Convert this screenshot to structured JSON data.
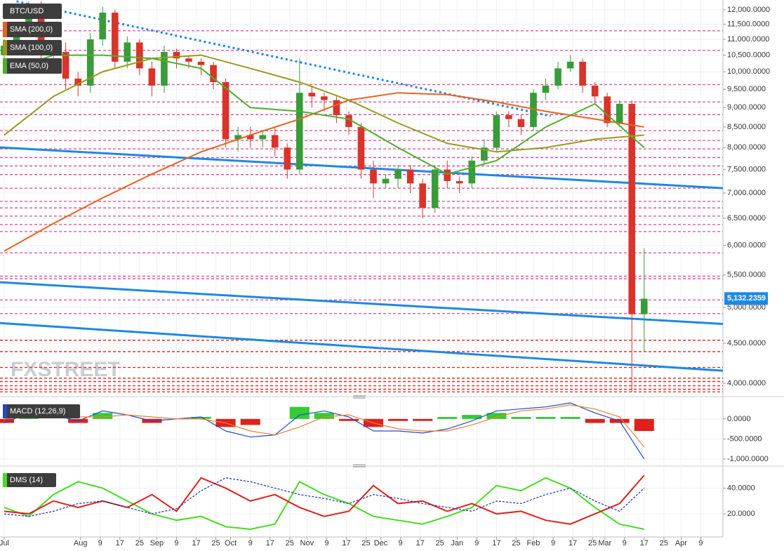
{
  "chart_data": [
    {
      "type": "candlestick",
      "symbol": "BTC/USD",
      "log_scale": true,
      "xlim": [
        -1.7,
        292
      ],
      "ylim": [
        3870,
        12350
      ],
      "yticks": [
        {
          "value": 12000,
          "label": "12,000.0000"
        },
        {
          "value": 11500,
          "label": "11,500.0000"
        },
        {
          "value": 11000,
          "label": "11,000.0000"
        },
        {
          "value": 10500,
          "label": "10,500.0000"
        },
        {
          "value": 10000,
          "label": "10,000.0000"
        },
        {
          "value": 9500,
          "label": "9,500.0000"
        },
        {
          "value": 9000,
          "label": "9,000.0000"
        },
        {
          "value": 8500,
          "label": "8,500.0000"
        },
        {
          "value": 8000,
          "label": "8,000.0000"
        },
        {
          "value": 7500,
          "label": "7,500.0000"
        },
        {
          "value": 7000,
          "label": "7,000.0000"
        },
        {
          "value": 6500,
          "label": "6,500.0000"
        },
        {
          "value": 6000,
          "label": "6,000.0000"
        },
        {
          "value": 5500,
          "label": "5,500.0000"
        },
        {
          "value": 5000,
          "label": "5,000.0000"
        },
        {
          "value": 4500,
          "label": "4,500.0000"
        },
        {
          "value": 4000,
          "label": "4,000.0000"
        }
      ],
      "last_price": {
        "value": 5132.2359,
        "label": "5,132.2359"
      },
      "last_price_color": "#1e88e5",
      "watermark": "FXSTREET",
      "candles": {
        "up_color": "#3a9b3a",
        "down_color": "#d9342b",
        "x": [
          0,
          5,
          10,
          15,
          20,
          25,
          30,
          35,
          40,
          45,
          50,
          55,
          60,
          65,
          70,
          75,
          80,
          85,
          90,
          95,
          100,
          105,
          110,
          115,
          120,
          125,
          130,
          135,
          140,
          145,
          150,
          155,
          160,
          165,
          170,
          175,
          180,
          185,
          190,
          195,
          200,
          205,
          210,
          215,
          220,
          225,
          230,
          235,
          240,
          245,
          250,
          255,
          260
        ],
        "open": [
          10500,
          10800,
          11300,
          12100,
          10500,
          10600,
          9800,
          9600,
          11000,
          11900,
          10300,
          10900,
          10100,
          9600,
          10600,
          10400,
          10300,
          10200,
          9700,
          8200,
          8300,
          8200,
          8300,
          8000,
          7500,
          9400,
          9300,
          9200,
          8800,
          8500,
          7500,
          7200,
          7300,
          7500,
          7200,
          6700,
          7500,
          7250,
          7200,
          7700,
          8000,
          8800,
          8700,
          8500,
          9400,
          9600,
          10100,
          10300,
          9600,
          9300,
          8600,
          9100,
          4900
        ],
        "high": [
          11000,
          11500,
          12300,
          12300,
          10900,
          10900,
          10000,
          11200,
          12100,
          12000,
          11100,
          11000,
          10300,
          10800,
          10700,
          10500,
          10400,
          10300,
          9800,
          8500,
          8500,
          8400,
          8500,
          8100,
          10400,
          9600,
          9400,
          9300,
          8900,
          8600,
          7700,
          7400,
          7600,
          7600,
          7300,
          7600,
          7700,
          7350,
          7800,
          8200,
          8900,
          8900,
          8800,
          9500,
          9800,
          10300,
          10500,
          10400,
          9700,
          9400,
          9200,
          9200,
          5950
        ],
        "low": [
          10200,
          10500,
          11100,
          10300,
          10100,
          9500,
          9300,
          9400,
          10800,
          10100,
          10100,
          9900,
          9300,
          9400,
          10100,
          10100,
          9900,
          9500,
          8000,
          7900,
          8000,
          8000,
          7800,
          7300,
          7400,
          9000,
          8900,
          8600,
          8300,
          7300,
          6900,
          7100,
          7100,
          7000,
          6500,
          6600,
          7100,
          7000,
          7100,
          7600,
          7900,
          8500,
          8300,
          8400,
          9200,
          9500,
          10000,
          9400,
          9100,
          8500,
          8500,
          3900,
          4400
        ],
        "close": [
          10800,
          11300,
          12100,
          10500,
          10600,
          9800,
          9600,
          11000,
          11900,
          10300,
          10900,
          10100,
          9600,
          10600,
          10400,
          10300,
          10200,
          9700,
          8200,
          8300,
          8200,
          8300,
          8000,
          7500,
          9400,
          9300,
          9200,
          8800,
          8500,
          7500,
          7200,
          7300,
          7500,
          7200,
          6700,
          7500,
          7250,
          7200,
          7700,
          8000,
          8800,
          8700,
          8500,
          9400,
          9600,
          10100,
          10300,
          9600,
          9300,
          8600,
          9100,
          4900,
          5130
        ]
      },
      "x": [
        0,
        20,
        40,
        60,
        80,
        100,
        120,
        140,
        160,
        180,
        200,
        220,
        240,
        260
      ],
      "series": [
        {
          "name": "SMA (200,0)",
          "color": "#e8621e",
          "values": [
            5900,
            6400,
            6900,
            7400,
            7900,
            8300,
            8700,
            9200,
            9400,
            9350,
            9150,
            8900,
            8700,
            8500
          ]
        },
        {
          "name": "SMA (100,0)",
          "color": "#9a9a1e",
          "values": [
            8300,
            9300,
            10000,
            10400,
            10500,
            10100,
            9700,
            9200,
            8600,
            8100,
            7900,
            8000,
            8200,
            8300
          ]
        },
        {
          "name": "EMA (50,0)",
          "color": "#4caf2a",
          "values": [
            10000,
            10500,
            10500,
            10400,
            10100,
            9000,
            8900,
            8700,
            8000,
            7400,
            7700,
            8500,
            9100,
            8000
          ]
        }
      ],
      "trendlines": [
        {
          "color": "#1e88e5",
          "dotted": true,
          "x": [
            5,
            222
          ],
          "values": [
            12300,
            8780
          ]
        },
        {
          "color": "#1e88e5",
          "dotted": false,
          "x": [
            -1.7,
            292
          ],
          "values": [
            8005,
            7100
          ]
        },
        {
          "color": "#1e88e5",
          "dotted": false,
          "x": [
            -1.7,
            292
          ],
          "values": [
            5383,
            4762
          ]
        },
        {
          "color": "#1e88e5",
          "dotted": false,
          "x": [
            -1.7,
            292
          ],
          "values": [
            4775,
            4150
          ]
        }
      ],
      "level_groups": [
        {
          "color": "#e8419a",
          "values": [
            11280,
            10650,
            9630,
            9150,
            8815,
            8410,
            8170,
            7970,
            7770,
            7580,
            7390,
            7100,
            6830,
            6700,
            6540,
            6380,
            6250,
            5870,
            5480,
            5440,
            5110,
            4910
          ]
        },
        {
          "color": "#e0201b",
          "values": [
            4540,
            4390,
            4190,
            4060,
            4020,
            3970,
            3930,
            3900
          ]
        }
      ]
    },
    {
      "type": "macd",
      "title": "MACD (12,26,9)",
      "xlim": [
        -1.7,
        292
      ],
      "ylim": [
        -1140,
        470
      ],
      "yticks": [
        {
          "value": 0,
          "label": "0.0000"
        },
        {
          "value": -500,
          "label": "-500.0000"
        },
        {
          "value": -1000,
          "label": "-1,000.0000"
        }
      ],
      "x": [
        0,
        10,
        20,
        30,
        40,
        50,
        60,
        70,
        80,
        90,
        100,
        110,
        120,
        130,
        140,
        150,
        160,
        170,
        180,
        190,
        200,
        210,
        220,
        230,
        240,
        250,
        260
      ],
      "histogram": {
        "positive_color": "#33cc33",
        "negative_color": "#e0201b",
        "values": [
          -100,
          100,
          0,
          -100,
          150,
          0,
          -100,
          0,
          50,
          -200,
          -150,
          0,
          300,
          150,
          -50,
          -200,
          -50,
          -50,
          50,
          100,
          150,
          50,
          50,
          50,
          -100,
          -100,
          -300
        ]
      },
      "series": [
        {
          "color": "#2448c8",
          "values": [
            -100,
            150,
            100,
            -50,
            200,
            100,
            -50,
            0,
            50,
            -300,
            -450,
            -400,
            100,
            200,
            50,
            -300,
            -300,
            -350,
            -250,
            -50,
            200,
            250,
            300,
            400,
            150,
            -50,
            -1000
          ]
        },
        {
          "color": "#f08030",
          "values": [
            0,
            50,
            100,
            50,
            50,
            100,
            50,
            0,
            0,
            -100,
            -300,
            -400,
            -200,
            50,
            100,
            -100,
            -250,
            -300,
            -300,
            -150,
            50,
            200,
            250,
            350,
            250,
            50,
            -700
          ]
        }
      ]
    },
    {
      "type": "line",
      "title": "DMS (14)",
      "xlim": [
        -1.7,
        292
      ],
      "ylim": [
        2,
        55
      ],
      "yticks": [
        {
          "value": 40,
          "label": "40.0000"
        },
        {
          "value": 20,
          "label": "20.0000"
        }
      ],
      "xticks": [
        {
          "value": 0,
          "label": "Jul"
        },
        {
          "value": 31,
          "label": "Aug"
        },
        {
          "value": 39,
          "label": "9"
        },
        {
          "value": 47,
          "label": "17"
        },
        {
          "value": 55,
          "label": "25"
        },
        {
          "value": 62,
          "label": "Sep"
        },
        {
          "value": 70,
          "label": "9"
        },
        {
          "value": 78,
          "label": "17"
        },
        {
          "value": 86,
          "label": "25"
        },
        {
          "value": 92,
          "label": "Oct"
        },
        {
          "value": 100,
          "label": "9"
        },
        {
          "value": 108,
          "label": "17"
        },
        {
          "value": 116,
          "label": "25"
        },
        {
          "value": 123,
          "label": "Nov"
        },
        {
          "value": 131,
          "label": "9"
        },
        {
          "value": 139,
          "label": "17"
        },
        {
          "value": 147,
          "label": "25"
        },
        {
          "value": 153,
          "label": "Dec"
        },
        {
          "value": 161,
          "label": "9"
        },
        {
          "value": 169,
          "label": "17"
        },
        {
          "value": 177,
          "label": "25"
        },
        {
          "value": 184,
          "label": "Jan"
        },
        {
          "value": 192,
          "label": "9"
        },
        {
          "value": 200,
          "label": "17"
        },
        {
          "value": 208,
          "label": "25"
        },
        {
          "value": 215,
          "label": "Feb"
        },
        {
          "value": 223,
          "label": "9"
        },
        {
          "value": 231,
          "label": "17"
        },
        {
          "value": 239,
          "label": "25"
        },
        {
          "value": 244,
          "label": "Mar"
        },
        {
          "value": 252,
          "label": "9"
        },
        {
          "value": 260,
          "label": "17"
        },
        {
          "value": 268,
          "label": "25"
        },
        {
          "value": 275,
          "label": "Apr"
        },
        {
          "value": 283,
          "label": "9"
        }
      ],
      "x": [
        0,
        10,
        20,
        30,
        40,
        50,
        60,
        70,
        80,
        90,
        100,
        110,
        120,
        130,
        140,
        150,
        160,
        170,
        180,
        190,
        200,
        210,
        220,
        230,
        240,
        250,
        260
      ],
      "series": [
        {
          "color": "#44dd22",
          "dashed": false,
          "values": [
            25,
            18,
            35,
            45,
            40,
            30,
            20,
            15,
            18,
            10,
            8,
            12,
            45,
            35,
            28,
            18,
            15,
            12,
            18,
            25,
            42,
            38,
            48,
            40,
            25,
            12,
            8
          ]
        },
        {
          "color": "#e0201b",
          "dashed": false,
          "values": [
            22,
            20,
            30,
            25,
            30,
            25,
            35,
            22,
            48,
            40,
            30,
            35,
            25,
            18,
            22,
            42,
            28,
            30,
            22,
            28,
            20,
            22,
            15,
            12,
            20,
            28,
            50
          ]
        },
        {
          "color": "#1a2fb0",
          "dashed": true,
          "values": [
            20,
            18,
            22,
            28,
            30,
            25,
            20,
            24,
            38,
            48,
            45,
            40,
            35,
            32,
            28,
            35,
            32,
            28,
            25,
            22,
            30,
            28,
            35,
            40,
            30,
            22,
            40
          ]
        }
      ]
    }
  ]
}
